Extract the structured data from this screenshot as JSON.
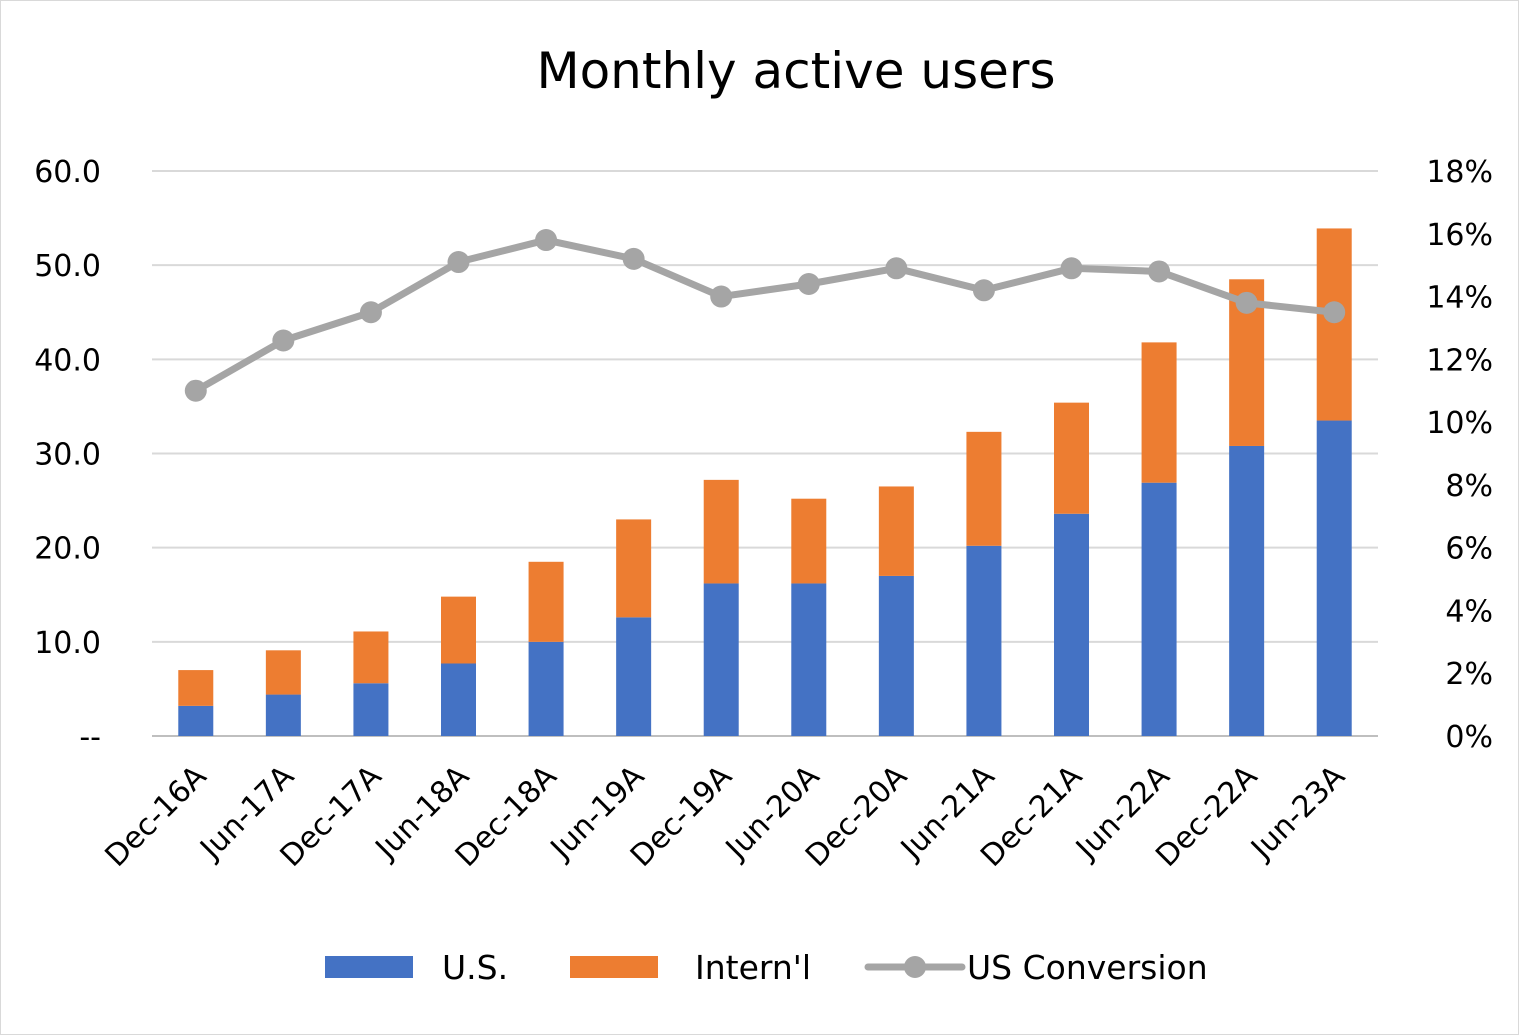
{
  "chart_data": {
    "type": "bar",
    "stacked": true,
    "title": "Monthly active users",
    "categories": [
      "Dec-16A",
      "Jun-17A",
      "Dec-17A",
      "Jun-18A",
      "Dec-18A",
      "Jun-19A",
      "Dec-19A",
      "Jun-20A",
      "Dec-20A",
      "Jun-21A",
      "Dec-21A",
      "Jun-22A",
      "Dec-22A",
      "Jun-23A"
    ],
    "series": [
      {
        "name": "U.S.",
        "type": "bar",
        "axis": "left",
        "color": "#4472c4",
        "values": [
          3.2,
          4.4,
          5.6,
          7.7,
          10.0,
          12.6,
          16.2,
          16.2,
          17.0,
          20.2,
          23.6,
          26.9,
          30.8,
          33.5
        ]
      },
      {
        "name": "Intern'l",
        "type": "bar",
        "axis": "left",
        "color": "#ed7d31",
        "values": [
          3.8,
          4.7,
          5.5,
          7.1,
          8.5,
          10.4,
          11.0,
          9.0,
          9.5,
          12.1,
          11.8,
          14.9,
          17.7,
          20.4
        ]
      },
      {
        "name": "US Conversion",
        "type": "line",
        "axis": "right",
        "color": "#a5a5a5",
        "values": [
          0.11,
          0.126,
          0.135,
          0.151,
          0.158,
          0.152,
          0.14,
          0.144,
          0.149,
          0.142,
          0.149,
          0.148,
          0.138,
          0.135
        ]
      }
    ],
    "y_left": {
      "min": 0,
      "max": 60,
      "ticks": [
        "--",
        "10.0",
        "20.0",
        "30.0",
        "40.0",
        "50.0",
        "60.0"
      ]
    },
    "y_right": {
      "min": 0,
      "max": 0.18,
      "ticks": [
        "0%",
        "2%",
        "4%",
        "6%",
        "8%",
        "10%",
        "12%",
        "14%",
        "16%",
        "18%"
      ]
    },
    "grid": true,
    "legend_position": "bottom"
  }
}
